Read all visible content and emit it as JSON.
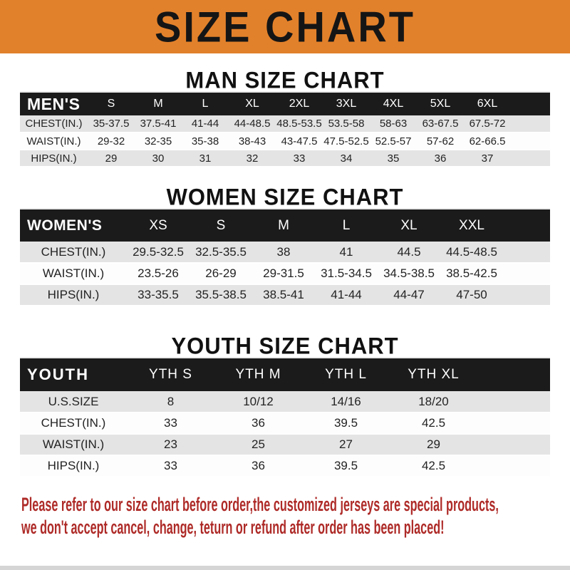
{
  "banner": {
    "title": "SIZE CHART",
    "background": "#e2812b"
  },
  "colors": {
    "banner_bg": "#e2812b",
    "table_header_bg": "#1b1b1b",
    "row_stripe": "#e4e4e4",
    "notice_text": "#ae2b28"
  },
  "men": {
    "heading": "MAN SIZE CHART",
    "table": {
      "label": "MEN'S",
      "columns": [
        "S",
        "M",
        "L",
        "XL",
        "2XL",
        "3XL",
        "4XL",
        "5XL",
        "6XL"
      ],
      "rows": [
        {
          "label": "CHEST(IN.)",
          "values": [
            "35-37.5",
            "37.5-41",
            "41-44",
            "44-48.5",
            "48.5-53.5",
            "53.5-58",
            "58-63",
            "63-67.5",
            "67.5-72"
          ]
        },
        {
          "label": "WAIST(IN.)",
          "values": [
            "29-32",
            "32-35",
            "35-38",
            "38-43",
            "43-47.5",
            "47.5-52.5",
            "52.5-57",
            "57-62",
            "62-66.5"
          ]
        },
        {
          "label": "HIPS(IN.)",
          "values": [
            "29",
            "30",
            "31",
            "32",
            "33",
            "34",
            "35",
            "36",
            "37"
          ]
        }
      ]
    }
  },
  "women": {
    "heading": "WOMEN SIZE CHART",
    "table": {
      "label": "WOMEN'S",
      "columns": [
        "XS",
        "S",
        "M",
        "L",
        "XL",
        "XXL"
      ],
      "rows": [
        {
          "label": "CHEST(IN.)",
          "values": [
            "29.5-32.5",
            "32.5-35.5",
            "38",
            "41",
            "44.5",
            "44.5-48.5"
          ]
        },
        {
          "label": "WAIST(IN.)",
          "values": [
            "23.5-26",
            "26-29",
            "29-31.5",
            "31.5-34.5",
            "34.5-38.5",
            "38.5-42.5"
          ]
        },
        {
          "label": "HIPS(IN.)",
          "values": [
            "33-35.5",
            "35.5-38.5",
            "38.5-41",
            "41-44",
            "44-47",
            "47-50"
          ]
        }
      ]
    }
  },
  "youth": {
    "heading": "YOUTH SIZE CHART",
    "table": {
      "label": "YOUTH",
      "columns": [
        "YTH S",
        "YTH M",
        "YTH L",
        "YTH XL"
      ],
      "rows": [
        {
          "label": "U.S.SIZE",
          "values": [
            "8",
            "10/12",
            "14/16",
            "18/20"
          ]
        },
        {
          "label": "CHEST(IN.)",
          "values": [
            "33",
            "36",
            "39.5",
            "42.5"
          ]
        },
        {
          "label": "WAIST(IN.)",
          "values": [
            "23",
            "25",
            "27",
            "29"
          ]
        },
        {
          "label": "HIPS(IN.)",
          "values": [
            "33",
            "36",
            "39.5",
            "42.5"
          ]
        }
      ]
    }
  },
  "notice": {
    "line1": "Please refer to our size chart before order,the customized jerseys are special products,",
    "line2": "we don't accept cancel, change, teturn or refund after order has been placed!"
  }
}
